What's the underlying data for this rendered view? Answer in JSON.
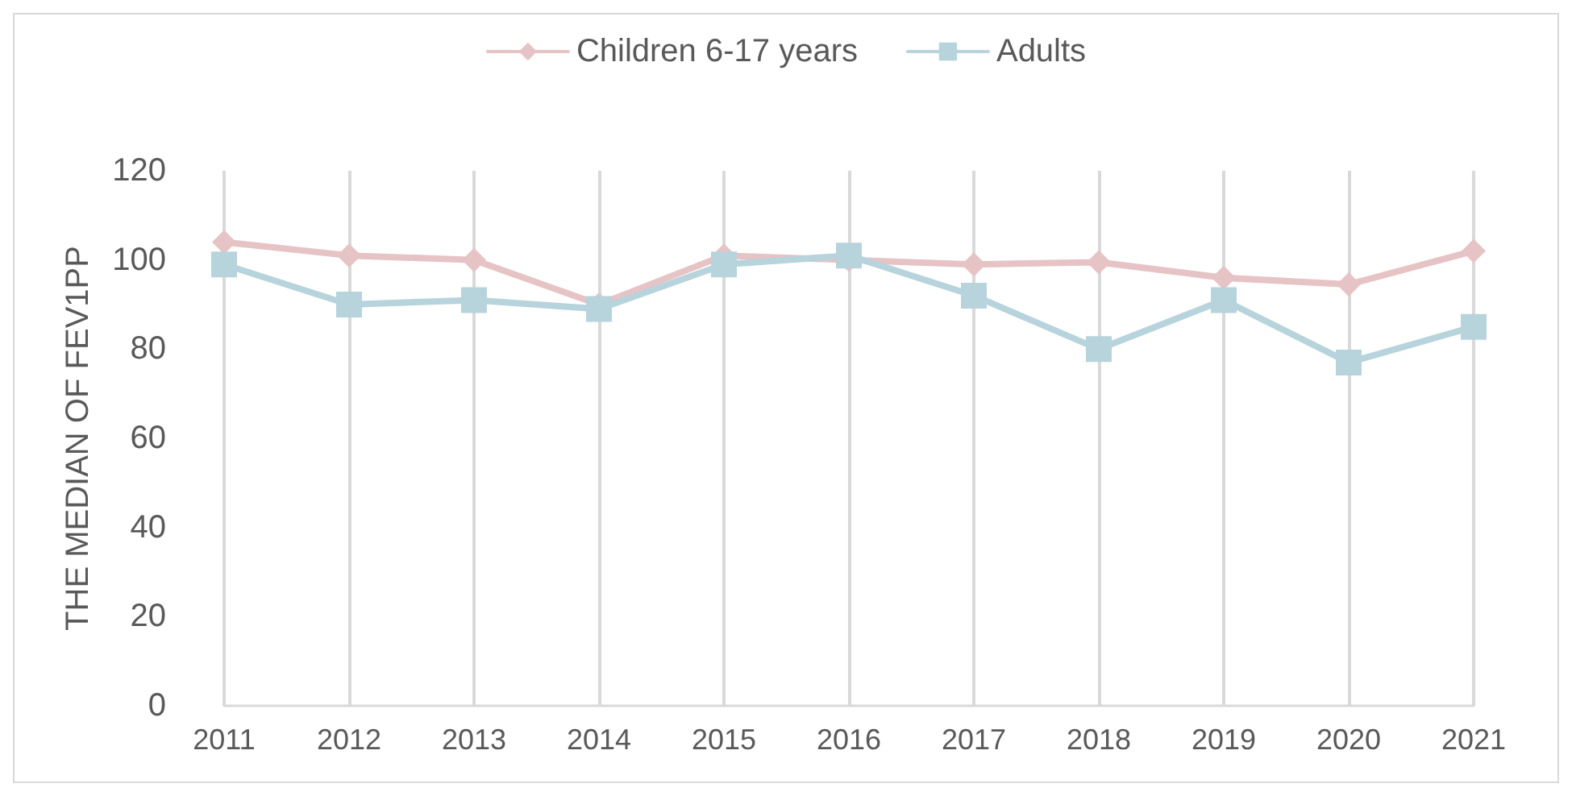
{
  "chart_data": {
    "type": "line",
    "ylabel": "THE MEDIAN OF FEV1PP",
    "categories": [
      "2011",
      "2012",
      "2013",
      "2014",
      "2015",
      "2016",
      "2017",
      "2018",
      "2019",
      "2020",
      "2021"
    ],
    "series": [
      {
        "name": "Children 6-17 years",
        "color": "#e6c3c5",
        "marker": "diamond",
        "values": [
          104,
          101,
          100,
          90,
          101,
          100,
          99,
          99.5,
          96,
          94.5,
          102
        ]
      },
      {
        "name": "Adults",
        "color": "#b7d3dc",
        "marker": "square",
        "values": [
          99,
          90,
          91,
          89,
          99,
          101,
          92,
          80,
          91,
          77,
          85
        ]
      }
    ],
    "ylim": [
      0,
      120
    ],
    "yticks": [
      0,
      20,
      40,
      60,
      80,
      100,
      120
    ],
    "grid": "x",
    "legend": "top"
  }
}
